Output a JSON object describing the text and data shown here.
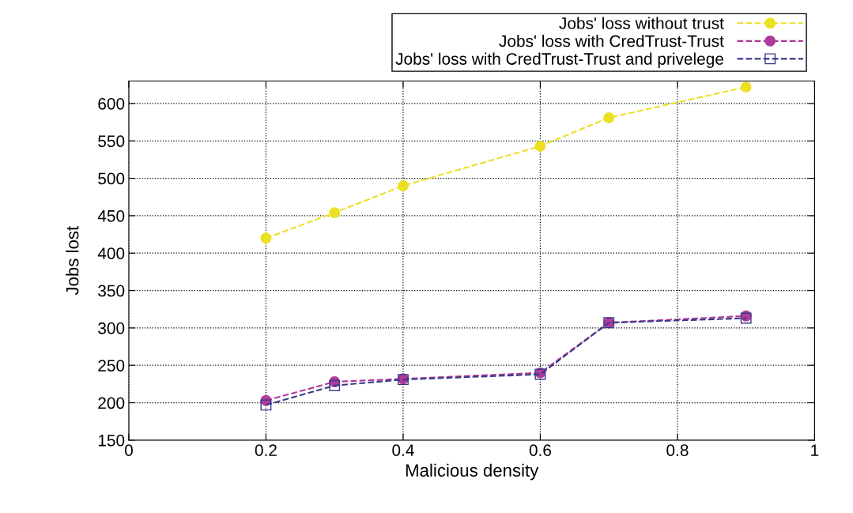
{
  "chart_data": {
    "type": "line",
    "xlabel": "Malicious density",
    "ylabel": "Jobs lost",
    "x": [
      0.2,
      0.3,
      0.4,
      0.6,
      0.7,
      0.9
    ],
    "series": [
      {
        "name": "Jobs' loss without trust",
        "color": "#ece023",
        "values": [
          420,
          454,
          490,
          543,
          581,
          622
        ],
        "marker": "circle"
      },
      {
        "name": "Jobs' loss with CredTrust-Trust",
        "color": "#b03a9a",
        "values": [
          203,
          228,
          232,
          240,
          307,
          316
        ],
        "marker": "circle"
      },
      {
        "name": "Jobs' loss with CredTrust-Trust and privelege",
        "color": "#3a3a8a",
        "values": [
          197,
          223,
          231,
          238,
          307,
          313
        ],
        "marker": "square"
      }
    ],
    "line_style": "dashed",
    "xlim": [
      0,
      1
    ],
    "xticks": [
      0,
      0.2,
      0.4,
      0.6,
      0.8,
      1
    ],
    "ylim": [
      150,
      630
    ],
    "yticks": [
      150,
      200,
      250,
      300,
      350,
      400,
      450,
      500,
      550,
      600
    ],
    "grid": true,
    "legend": "top right"
  }
}
